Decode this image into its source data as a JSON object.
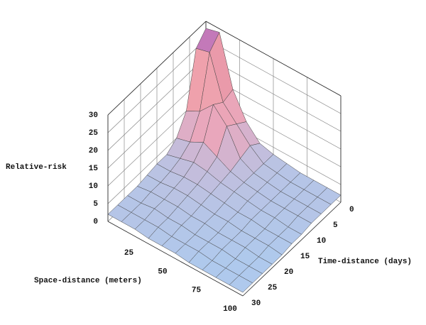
{
  "chart_data": {
    "type": "surface",
    "z_label": "Relative-risk",
    "x_label": "Space-distance (meters)",
    "y_label": "Time-distance (days)",
    "x": [
      0,
      10,
      20,
      30,
      40,
      50,
      60,
      70,
      80,
      90,
      100
    ],
    "y": [
      0,
      3,
      6,
      9,
      12,
      15,
      18,
      21,
      24,
      27,
      30
    ],
    "z": [
      [
        28,
        29,
        15,
        8,
        4,
        3,
        2.5,
        2,
        2,
        2,
        2
      ],
      [
        25,
        26,
        14,
        10,
        6,
        3,
        2.5,
        2,
        2,
        2,
        2
      ],
      [
        10,
        12,
        16,
        12,
        5,
        3,
        2.5,
        2,
        2,
        2,
        2
      ],
      [
        5,
        6,
        8,
        6,
        4,
        3,
        2.5,
        2,
        2,
        2,
        2
      ],
      [
        3,
        4,
        5,
        4.5,
        3.5,
        3,
        2.5,
        2,
        2,
        1.5,
        1.5
      ],
      [
        3,
        3,
        3.5,
        3.5,
        3,
        2.5,
        2,
        2,
        1.5,
        1.5,
        1.5
      ],
      [
        2.5,
        2.5,
        3,
        3,
        2.5,
        2,
        2,
        1.5,
        1.5,
        1.5,
        1
      ],
      [
        2,
        2.5,
        2.5,
        2.5,
        2,
        2,
        1.5,
        1.5,
        1.5,
        1,
        1
      ],
      [
        2,
        2,
        2.5,
        2,
        2,
        1.5,
        1.5,
        1.5,
        1,
        1,
        1
      ],
      [
        2,
        2,
        2,
        2,
        1.5,
        1.5,
        1.5,
        1,
        1,
        1,
        1
      ],
      [
        2,
        2,
        2,
        1.5,
        1.5,
        1.5,
        1,
        1,
        1,
        1,
        1
      ]
    ],
    "xlim": [
      0,
      100
    ],
    "ylim": [
      0,
      30
    ],
    "zlim": [
      0,
      30
    ],
    "xticks": [
      25,
      50,
      75,
      100
    ],
    "yticks": [
      0,
      5,
      10,
      15,
      20,
      25,
      30
    ],
    "zticks": [
      0,
      5,
      10,
      15,
      20,
      25,
      30
    ],
    "grid": true,
    "colormap": [
      "#a8cdf2",
      "#e9a7bd",
      "#f0a0a8",
      "#b068c0"
    ]
  }
}
